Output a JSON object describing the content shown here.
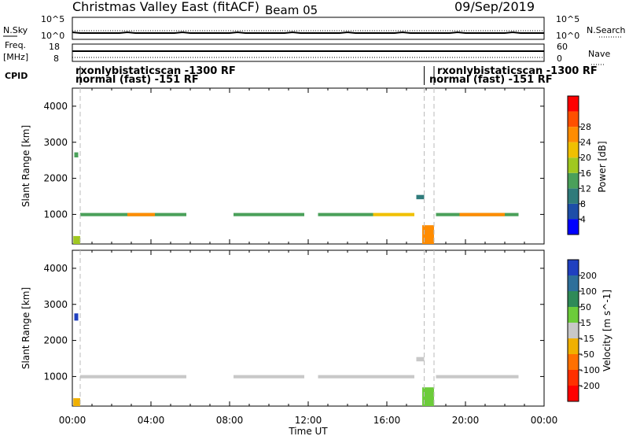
{
  "header": {
    "station": "Christmas Valley East (fitACF)",
    "beam": "Beam 05",
    "date": "09/Sep/2019"
  },
  "top_panels": {
    "nsky_label": "N.Sky",
    "nsky_ticks": [
      "10^5",
      "10^0"
    ],
    "nsearch_label": "N.Search",
    "nsearch_ticks": [
      "10^5",
      "10^0"
    ],
    "freq_label": "Freq.",
    "freq_unit": "[MHz]",
    "freq_ticks": [
      "18",
      "8"
    ],
    "nave_label": "Nave",
    "nave_ticks": [
      "60",
      "0"
    ],
    "cpid_label": "CPID",
    "cpid_segments": [
      {
        "line1": "rxonlybistaticscan -1300 RF",
        "line2": "normal (fast) -151 RF"
      },
      {
        "line1": "rxonlybistaticscan -1300 RF",
        "line2": "normal (fast) -151 RF"
      }
    ]
  },
  "axes": {
    "ylabel": "Slant Range [km]",
    "xlabel": "Time UT",
    "xticks": [
      "00:00",
      "04:00",
      "08:00",
      "12:00",
      "16:00",
      "20:00",
      "00:00"
    ],
    "yticks": [
      "1000",
      "2000",
      "3000",
      "4000"
    ]
  },
  "power_scale": {
    "label": "Power [dB]",
    "ticks": [
      "4",
      "8",
      "12",
      "16",
      "20",
      "24",
      "28"
    ],
    "colors": [
      "#0000ff",
      "#1d4ea8",
      "#2f7b7b",
      "#4aa05a",
      "#a0c820",
      "#f0c000",
      "#ff8c00",
      "#ff5000",
      "#ff0000"
    ]
  },
  "velocity_scale": {
    "label": "Velocity [m s^-1]",
    "ticks": [
      "200",
      "100",
      "50",
      "15",
      "-15",
      "-50",
      "-100",
      "-200"
    ],
    "colors": [
      "#2040c0",
      "#2e6f9a",
      "#2f8a58",
      "#6ccc3a",
      "#c8c8c8",
      "#f0b000",
      "#ff7000",
      "#ff3000",
      "#ff0000"
    ]
  },
  "chart_data": {
    "type": "heatmap",
    "x_unit": "UT hours",
    "xlim": [
      0,
      24
    ],
    "ylim": [
      180,
      4500
    ],
    "mode_change_times": [
      0.4,
      17.9,
      18.4
    ],
    "power_segments": [
      {
        "t0": 0.05,
        "t1": 0.4,
        "r0": 180,
        "r1": 400,
        "level": 4
      },
      {
        "t0": 0.1,
        "t1": 0.3,
        "r0": 2580,
        "r1": 2720,
        "level": 3
      },
      {
        "t0": 0.4,
        "t1": 5.8,
        "r0": 950,
        "r1": 1040,
        "level": 3
      },
      {
        "t0": 2.8,
        "t1": 4.2,
        "r0": 950,
        "r1": 1040,
        "level": 6
      },
      {
        "t0": 8.2,
        "t1": 11.8,
        "r0": 950,
        "r1": 1040,
        "level": 3
      },
      {
        "t0": 12.5,
        "t1": 15.3,
        "r0": 950,
        "r1": 1040,
        "level": 3
      },
      {
        "t0": 15.3,
        "t1": 17.4,
        "r0": 950,
        "r1": 1040,
        "level": 5
      },
      {
        "t0": 17.5,
        "t1": 17.9,
        "r0": 1420,
        "r1": 1540,
        "level": 2
      },
      {
        "t0": 17.8,
        "t1": 18.4,
        "r0": 180,
        "r1": 700,
        "level": 6
      },
      {
        "t0": 18.5,
        "t1": 22.7,
        "r0": 950,
        "r1": 1040,
        "level": 3
      },
      {
        "t0": 19.7,
        "t1": 22.0,
        "r0": 950,
        "r1": 1040,
        "level": 6
      }
    ],
    "velocity_segments": [
      {
        "t0": 0.05,
        "t1": 0.4,
        "r0": 180,
        "r1": 400,
        "level": 5
      },
      {
        "t0": 0.1,
        "t1": 0.3,
        "r0": 2550,
        "r1": 2750,
        "level": 0
      },
      {
        "t0": 0.4,
        "t1": 5.8,
        "r0": 950,
        "r1": 1040,
        "level": 4
      },
      {
        "t0": 8.2,
        "t1": 11.8,
        "r0": 950,
        "r1": 1040,
        "level": 4
      },
      {
        "t0": 12.5,
        "t1": 17.4,
        "r0": 950,
        "r1": 1040,
        "level": 4
      },
      {
        "t0": 17.5,
        "t1": 17.9,
        "r0": 1420,
        "r1": 1540,
        "level": 4
      },
      {
        "t0": 17.8,
        "t1": 18.4,
        "r0": 180,
        "r1": 700,
        "level": 3
      },
      {
        "t0": 18.5,
        "t1": 22.7,
        "r0": 950,
        "r1": 1040,
        "level": 4
      }
    ]
  }
}
